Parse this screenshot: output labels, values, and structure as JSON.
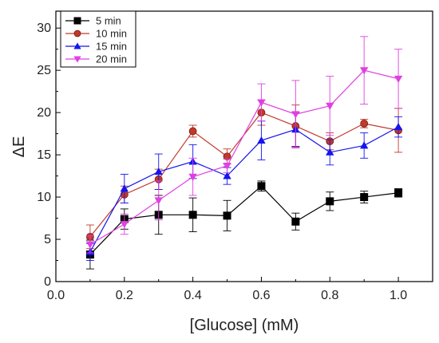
{
  "chart_data": {
    "type": "line",
    "xlabel": "[Glucose] (mM)",
    "ylabel": "ΔE",
    "xlim": [
      0.0,
      1.1
    ],
    "ylim": [
      0,
      32
    ],
    "x_ticks": [
      "0.0",
      "0.2",
      "0.4",
      "0.6",
      "0.8",
      "1.0"
    ],
    "y_ticks": [
      "0",
      "5",
      "10",
      "15",
      "20",
      "25",
      "30"
    ],
    "legend_position": "top-left",
    "grid": false,
    "x": [
      0.1,
      0.2,
      0.3,
      0.4,
      0.5,
      0.6,
      0.7,
      0.8,
      0.9,
      1.0
    ],
    "series": [
      {
        "name": "5 min",
        "color": "#000000",
        "marker": "square",
        "values": [
          3.2,
          7.4,
          7.9,
          7.9,
          7.8,
          11.3,
          7.1,
          9.5,
          10.0,
          10.5
        ],
        "errors": [
          1.7,
          1.2,
          2.3,
          2.0,
          1.8,
          0.6,
          1.0,
          1.1,
          0.7,
          0.5
        ]
      },
      {
        "name": "10 min",
        "color": "#c0392b",
        "marker": "circle",
        "values": [
          5.3,
          10.3,
          12.1,
          17.8,
          14.8,
          20.0,
          18.4,
          16.6,
          18.7,
          17.9
        ],
        "errors": [
          1.4,
          1.0,
          1.2,
          0.7,
          0.9,
          1.5,
          2.5,
          1.0,
          0.5,
          2.6
        ]
      },
      {
        "name": "15 min",
        "color": "#1515ee",
        "marker": "triangle-up",
        "values": [
          3.5,
          11.0,
          13.0,
          14.2,
          12.5,
          16.7,
          18.0,
          15.3,
          16.1,
          18.3
        ],
        "errors": [
          1.0,
          1.7,
          2.1,
          2.0,
          1.0,
          2.3,
          2.0,
          1.5,
          1.5,
          1.2
        ]
      },
      {
        "name": "20 min",
        "color": "#e040e0",
        "marker": "triangle-down",
        "values": [
          4.4,
          6.8,
          9.6,
          12.4,
          13.7,
          21.2,
          19.8,
          20.8,
          25.0,
          24.0
        ],
        "errors": [
          1.0,
          1.2,
          2.3,
          2.2,
          0.8,
          2.2,
          4.0,
          3.5,
          4.0,
          3.5
        ]
      }
    ]
  }
}
